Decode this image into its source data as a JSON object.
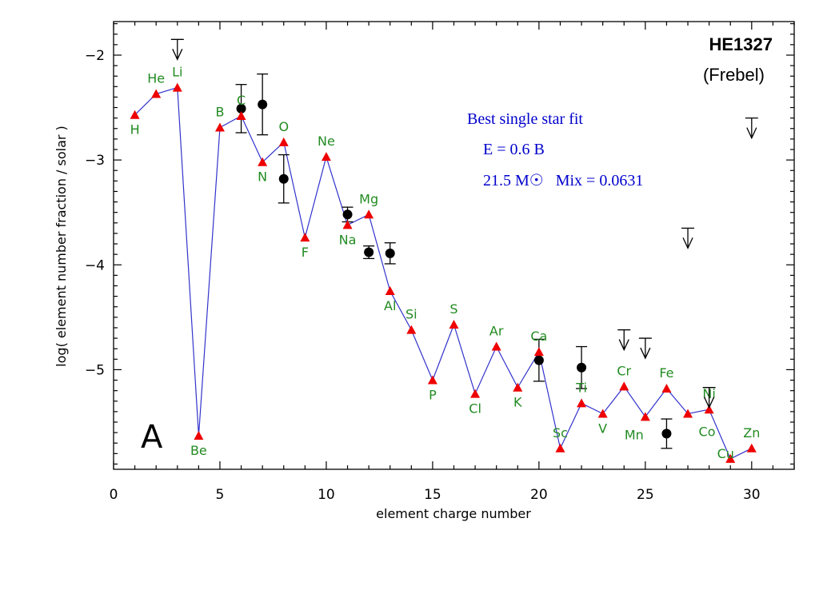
{
  "chart_data": {
    "type": "scatter",
    "title": "HE1327",
    "subtitle": "(Frebel)",
    "panel_label": "A",
    "xlabel": "element charge number",
    "ylabel": "log( element number fraction / solar )",
    "xlim": [
      0,
      32
    ],
    "ylim": [
      -5.95,
      -1.68
    ],
    "x_ticks": [
      0,
      5,
      10,
      15,
      20,
      25,
      30
    ],
    "y_ticks": [
      -2,
      -3,
      -4,
      -5
    ],
    "annotation": {
      "line1": "Best single star fit",
      "line2": "E = 0.6 B",
      "line3": "21.5 M☉   Mix = 0.0631"
    },
    "colors": {
      "model_line": "#3333cc",
      "model_marker": "#ee0000",
      "element_label": "#228B22",
      "observation": "#000000",
      "annotation": "#0000cc"
    },
    "series": [
      {
        "type": "line-with-markers",
        "points": [
          {
            "z": 1,
            "label": "H",
            "y": -2.57
          },
          {
            "z": 2,
            "label": "He",
            "y": -2.37
          },
          {
            "z": 3,
            "label": "Li",
            "y": -2.31
          },
          {
            "z": 4,
            "label": "Be",
            "y": -5.63
          },
          {
            "z": 5,
            "label": "B",
            "y": -2.69
          },
          {
            "z": 6,
            "label": "C",
            "y": -2.58
          },
          {
            "z": 7,
            "label": "N",
            "y": -3.02
          },
          {
            "z": 8,
            "label": "O",
            "y": -2.83
          },
          {
            "z": 9,
            "label": "F",
            "y": -3.74
          },
          {
            "z": 10,
            "label": "Ne",
            "y": -2.97
          },
          {
            "z": 11,
            "label": "Na",
            "y": -3.62
          },
          {
            "z": 12,
            "label": "Mg",
            "y": -3.52
          },
          {
            "z": 13,
            "label": "Al",
            "y": -4.25
          },
          {
            "z": 14,
            "label": "Si",
            "y": -4.62
          },
          {
            "z": 15,
            "label": "P",
            "y": -5.1
          },
          {
            "z": 16,
            "label": "S",
            "y": -4.57
          },
          {
            "z": 17,
            "label": "Cl",
            "y": -5.23
          },
          {
            "z": 18,
            "label": "Ar",
            "y": -4.78
          },
          {
            "z": 19,
            "label": "K",
            "y": -5.17
          },
          {
            "z": 20,
            "label": "Ca",
            "y": -4.83
          },
          {
            "z": 21,
            "label": "Sc",
            "y": -5.75
          },
          {
            "z": 22,
            "label": "Ti",
            "y": -5.32
          },
          {
            "z": 23,
            "label": "V",
            "y": -5.42
          },
          {
            "z": 24,
            "label": "Cr",
            "y": -5.16
          },
          {
            "z": 25,
            "label": "Mn",
            "y": -5.45
          },
          {
            "z": 26,
            "label": "Fe",
            "y": -5.18
          },
          {
            "z": 27,
            "label": "Co",
            "y": -5.42
          },
          {
            "z": 28,
            "label": "Ni",
            "y": -5.38
          },
          {
            "z": 29,
            "label": "Cu",
            "y": -5.85
          },
          {
            "z": 30,
            "label": "Zn",
            "y": -5.75
          }
        ]
      },
      {
        "type": "observed-with-errors",
        "points": [
          {
            "z": 6,
            "y": -2.51,
            "err_low": 0.23,
            "err_high": 0.23
          },
          {
            "z": 7,
            "y": -2.47,
            "err_low": 0.29,
            "err_high": 0.29
          },
          {
            "z": 8,
            "y": -3.18,
            "err_low": 0.23,
            "err_high": 0.23
          },
          {
            "z": 11,
            "y": -3.52,
            "err_low": 0.07,
            "err_high": 0.07
          },
          {
            "z": 12,
            "y": -3.88,
            "err_low": 0.06,
            "err_high": 0.06
          },
          {
            "z": 13,
            "y": -3.89,
            "err_low": 0.1,
            "err_high": 0.1
          },
          {
            "z": 20,
            "y": -4.91,
            "err_low": 0.2,
            "err_high": 0.2
          },
          {
            "z": 22,
            "y": -4.98,
            "err_low": 0.2,
            "err_high": 0.2
          },
          {
            "z": 26,
            "y": -5.61,
            "err_low": 0.14,
            "err_high": 0.14
          }
        ]
      },
      {
        "type": "upper-limits",
        "points": [
          {
            "z": 3,
            "y": -1.85
          },
          {
            "z": 24,
            "y": -4.62
          },
          {
            "z": 25,
            "y": -4.7
          },
          {
            "z": 27,
            "y": -3.65
          },
          {
            "z": 28,
            "y": -5.17
          },
          {
            "z": 30,
            "y": -2.6
          }
        ]
      }
    ]
  }
}
